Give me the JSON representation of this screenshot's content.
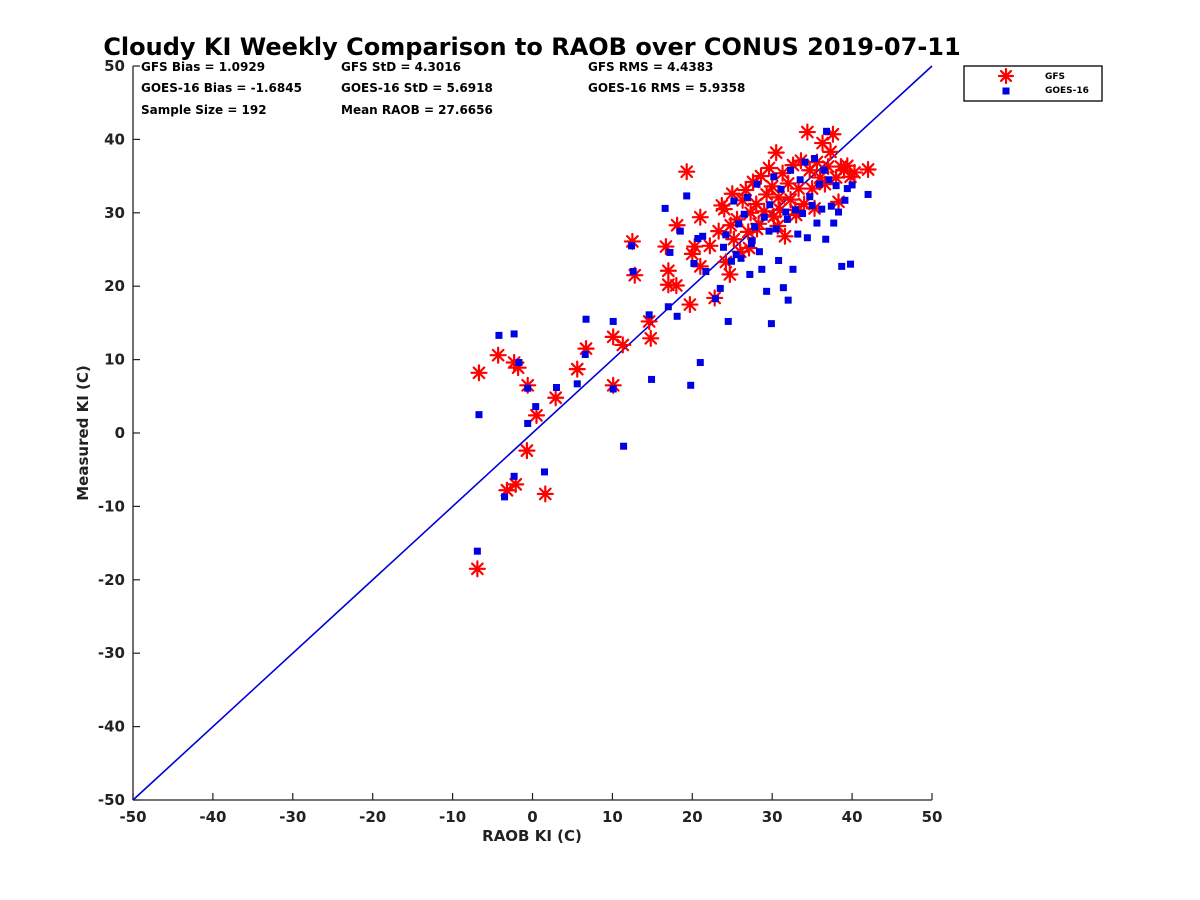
{
  "chart_data": {
    "type": "scatter",
    "title": "Cloudy KI Weekly Comparison to RAOB over CONUS 2019-07-11",
    "xlabel": "RAOB KI (C)",
    "ylabel": "Measured KI (C)",
    "xlim": [
      -50,
      50
    ],
    "ylim": [
      -50,
      50
    ],
    "xticks": [
      "-50",
      "-40",
      "-30",
      "-20",
      "-10",
      "0",
      "10",
      "20",
      "30",
      "40",
      "50"
    ],
    "yticks": [
      "50",
      "40",
      "30",
      "20",
      "10",
      "0",
      "-10",
      "-20",
      "-30",
      "-40",
      "-50"
    ],
    "grid": false,
    "legend_position": "outside-top-right",
    "reference_line": {
      "x": [
        -50,
        50
      ],
      "y": [
        -50,
        50
      ],
      "color": "#0000d8"
    },
    "stats": {
      "gfs_bias": "GFS Bias = 1.0929",
      "goes_bias": "GOES-16 Bias = -1.6845",
      "sample_size": "Sample Size = 192",
      "gfs_std": "GFS StD = 4.3016",
      "goes_std": "GOES-16 StD = 5.6918",
      "mean_raob": "Mean RAOB = 27.6656",
      "gfs_rms": "GFS RMS = 4.4383",
      "goes_rms": "GOES-16 RMS = 5.9358"
    },
    "series": [
      {
        "name": "GFS",
        "marker": "asterisk",
        "color": "#ff0000",
        "points": [
          [
            -6.7,
            8.2
          ],
          [
            -4.3,
            10.6
          ],
          [
            -2.3,
            9.6
          ],
          [
            -1.8,
            8.9
          ],
          [
            -0.6,
            6.5
          ],
          [
            0.5,
            2.4
          ],
          [
            -0.7,
            -2.4
          ],
          [
            -2.1,
            -7
          ],
          [
            -3.2,
            -7.8
          ],
          [
            1.6,
            -8.3
          ],
          [
            -6.9,
            -18.5
          ],
          [
            2.9,
            4.8
          ],
          [
            5.6,
            8.7
          ],
          [
            6.7,
            11.5
          ],
          [
            10.1,
            13.1
          ],
          [
            11.3,
            12
          ],
          [
            10.1,
            6.5
          ],
          [
            14.6,
            15.2
          ],
          [
            14.8,
            12.9
          ],
          [
            12.5,
            26.1
          ],
          [
            12.8,
            21.5
          ],
          [
            16.7,
            25.4
          ],
          [
            17,
            22.1
          ],
          [
            17,
            20.2
          ],
          [
            18,
            20.1
          ],
          [
            18.1,
            28.3
          ],
          [
            19.3,
            35.6
          ],
          [
            19.7,
            17.5
          ],
          [
            20,
            24.4
          ],
          [
            20.3,
            25.4
          ],
          [
            21,
            29.4
          ],
          [
            21,
            22.7
          ],
          [
            22.2,
            25.5
          ],
          [
            22.8,
            18.4
          ],
          [
            23.3,
            27.5
          ],
          [
            23.7,
            31
          ],
          [
            24,
            30.5
          ],
          [
            24.2,
            23.3
          ],
          [
            24.7,
            21.6
          ],
          [
            24.8,
            28.3
          ],
          [
            25,
            32.6
          ],
          [
            25.2,
            26.4
          ],
          [
            25.6,
            29.1
          ],
          [
            26,
            24.7
          ],
          [
            26.3,
            31.7
          ],
          [
            26.7,
            33.1
          ],
          [
            27,
            27.4
          ],
          [
            27.3,
            30
          ],
          [
            27.6,
            34.2
          ],
          [
            28,
            31.2
          ],
          [
            28.3,
            28.5
          ],
          [
            28.6,
            35
          ],
          [
            29,
            30.2
          ],
          [
            29.3,
            32.5
          ],
          [
            29.6,
            36.1
          ],
          [
            30,
            33.6
          ],
          [
            30.2,
            29.5
          ],
          [
            30.5,
            38.2
          ],
          [
            30.8,
            32.1
          ],
          [
            31,
            30.4
          ],
          [
            31.3,
            35.4
          ],
          [
            31.6,
            26.8
          ],
          [
            32,
            34
          ],
          [
            32.3,
            31.8
          ],
          [
            32.6,
            36.5
          ],
          [
            33,
            29.7
          ],
          [
            33.3,
            33.3
          ],
          [
            33.6,
            37.1
          ],
          [
            34,
            31.2
          ],
          [
            34.4,
            41
          ],
          [
            34.7,
            35.8
          ],
          [
            35,
            33.3
          ],
          [
            35.3,
            30.6
          ],
          [
            35.6,
            36.9
          ],
          [
            36,
            34.8
          ],
          [
            36.3,
            39.5
          ],
          [
            36.6,
            33.9
          ],
          [
            37,
            36.3
          ],
          [
            37.3,
            38.3
          ],
          [
            37.6,
            40.7
          ],
          [
            38,
            34.8
          ],
          [
            38.3,
            31.5
          ],
          [
            38.6,
            36.3
          ],
          [
            39,
            35.8
          ],
          [
            39.4,
            36.4
          ],
          [
            39.8,
            34.9
          ],
          [
            40.3,
            35.5
          ],
          [
            42,
            35.9
          ],
          [
            27.1,
            25.2
          ],
          [
            28.1,
            27.8
          ],
          [
            30.7,
            28.2
          ],
          [
            32.9,
            30.4
          ]
        ]
      },
      {
        "name": "GOES-16",
        "marker": "square",
        "color": "#0000e6",
        "points": [
          [
            -6.7,
            2.5
          ],
          [
            -4.2,
            13.3
          ],
          [
            -2.3,
            13.5
          ],
          [
            -1.7,
            9.6
          ],
          [
            -0.6,
            6.1
          ],
          [
            -0.6,
            1.3
          ],
          [
            0.4,
            3.6
          ],
          [
            -2.3,
            -5.9
          ],
          [
            -3.5,
            -8.7
          ],
          [
            1.5,
            -5.3
          ],
          [
            -6.9,
            -16.1
          ],
          [
            3,
            6.2
          ],
          [
            5.6,
            6.7
          ],
          [
            6.7,
            15.5
          ],
          [
            6.6,
            10.7
          ],
          [
            10.1,
            15.2
          ],
          [
            10.1,
            6
          ],
          [
            11.4,
            -1.8
          ],
          [
            14.6,
            16.1
          ],
          [
            14.9,
            7.3
          ],
          [
            12.4,
            25.5
          ],
          [
            12.6,
            22
          ],
          [
            16.6,
            30.6
          ],
          [
            17.2,
            24.6
          ],
          [
            17,
            17.2
          ],
          [
            18.1,
            15.9
          ],
          [
            18.5,
            27.5
          ],
          [
            19.3,
            32.3
          ],
          [
            19.8,
            6.5
          ],
          [
            20.2,
            23.1
          ],
          [
            20.7,
            26.5
          ],
          [
            21.3,
            26.8
          ],
          [
            21,
            9.6
          ],
          [
            21.7,
            22
          ],
          [
            22.9,
            18.3
          ],
          [
            23.5,
            19.7
          ],
          [
            23.9,
            25.3
          ],
          [
            24.2,
            27
          ],
          [
            24.5,
            15.2
          ],
          [
            24.9,
            23.4
          ],
          [
            25.2,
            31.6
          ],
          [
            25.5,
            24.3
          ],
          [
            25.8,
            28.5
          ],
          [
            26.1,
            23.8
          ],
          [
            26.5,
            29.8
          ],
          [
            26.9,
            32.1
          ],
          [
            27.2,
            21.6
          ],
          [
            27.5,
            26.2
          ],
          [
            27.8,
            28.1
          ],
          [
            28.1,
            33.9
          ],
          [
            28.4,
            24.7
          ],
          [
            28.7,
            22.3
          ],
          [
            29,
            29.4
          ],
          [
            29.3,
            19.3
          ],
          [
            29.7,
            31.1
          ],
          [
            29.9,
            14.9
          ],
          [
            30.2,
            34.9
          ],
          [
            30.5,
            27.8
          ],
          [
            30.8,
            23.5
          ],
          [
            31.1,
            33.2
          ],
          [
            31.4,
            19.8
          ],
          [
            31.7,
            30.1
          ],
          [
            32,
            18.1
          ],
          [
            32.3,
            35.8
          ],
          [
            32.6,
            22.3
          ],
          [
            32.9,
            30.4
          ],
          [
            33.2,
            27.1
          ],
          [
            33.5,
            34.5
          ],
          [
            33.8,
            29.9
          ],
          [
            34.1,
            36.9
          ],
          [
            34.4,
            26.6
          ],
          [
            34.7,
            32.2
          ],
          [
            35,
            31
          ],
          [
            35.3,
            37.4
          ],
          [
            35.6,
            28.6
          ],
          [
            35.9,
            33.9
          ],
          [
            36.2,
            30.5
          ],
          [
            36.5,
            35.8
          ],
          [
            36.8,
            41.1
          ],
          [
            37.1,
            34.5
          ],
          [
            37.4,
            30.9
          ],
          [
            37.7,
            28.6
          ],
          [
            38,
            33.7
          ],
          [
            38.3,
            30.1
          ],
          [
            38.7,
            22.7
          ],
          [
            39.1,
            31.7
          ],
          [
            39.4,
            33.3
          ],
          [
            39.8,
            23
          ],
          [
            40,
            33.8
          ],
          [
            42,
            32.5
          ],
          [
            36.7,
            26.4
          ],
          [
            27.4,
            25.8
          ],
          [
            29.6,
            27.5
          ],
          [
            31.9,
            29.1
          ]
        ]
      }
    ]
  }
}
